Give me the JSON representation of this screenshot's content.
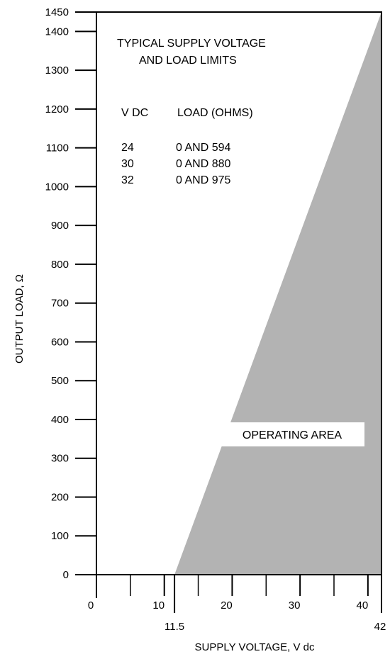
{
  "chart_data": {
    "type": "area",
    "xlabel": "SUPPLY VOLTAGE, V dc",
    "ylabel": "OUTPUT LOAD, Ω",
    "xlim": [
      0,
      42
    ],
    "ylim": [
      0,
      1450
    ],
    "x_ticks": [
      0,
      10,
      20,
      30,
      40
    ],
    "x_minor_ticks": [
      5,
      15,
      25,
      35
    ],
    "x_special_ticks": [
      11.5,
      42
    ],
    "y_ticks": [
      0,
      100,
      200,
      300,
      400,
      500,
      600,
      700,
      800,
      900,
      1000,
      1100,
      1200,
      1300,
      1400,
      1450
    ],
    "grid": false,
    "fill_color": "#b3b3b3",
    "series": [
      {
        "name": "OPERATING AREA",
        "x": [
          11.5,
          42,
          42
        ],
        "y": [
          0,
          1450,
          0
        ]
      }
    ],
    "annotation": {
      "title_lines": [
        "TYPICAL SUPPLY VOLTAGE",
        "AND LOAD LIMITS"
      ],
      "table": {
        "headers": [
          "V DC",
          "LOAD (OHMS)"
        ],
        "rows": [
          [
            "24",
            "0 AND 594"
          ],
          [
            "30",
            "0 AND 880"
          ],
          [
            "32",
            "0 AND 975"
          ]
        ]
      }
    }
  }
}
